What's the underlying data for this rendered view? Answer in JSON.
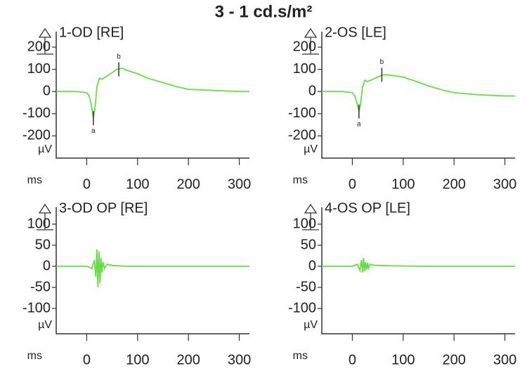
{
  "title": "3 - 1 cd.s/m²",
  "chart_data": [
    {
      "type": "line",
      "title": "1-OD [RE]",
      "xlabel": "ms",
      "ylabel": "µV",
      "x": [
        -60,
        -40,
        -20,
        0,
        5,
        10,
        13,
        16,
        20,
        25,
        30,
        40,
        50,
        60,
        70,
        80,
        100,
        120,
        150,
        180,
        200,
        250,
        300,
        320
      ],
      "series": [
        {
          "name": "1-OD",
          "color": "#66dd44",
          "values": [
            0,
            0,
            0,
            -5,
            -20,
            -70,
            -120,
            -80,
            20,
            60,
            55,
            70,
            85,
            100,
            105,
            95,
            80,
            60,
            40,
            20,
            10,
            5,
            0,
            0
          ]
        }
      ],
      "annotations": [
        {
          "text": "a",
          "x": 13,
          "y": -120
        },
        {
          "text": "b",
          "x": 63,
          "y": 100
        }
      ],
      "xlim": [
        -60,
        320
      ],
      "ylim": [
        -300,
        270
      ],
      "xticks": [
        0,
        100,
        200,
        300
      ],
      "yticks": [
        200,
        100,
        0,
        -100,
        -200
      ]
    },
    {
      "type": "line",
      "title": "2-OS [LE]",
      "xlabel": "ms",
      "ylabel": "µV",
      "x": [
        -60,
        -40,
        -20,
        0,
        5,
        10,
        13,
        16,
        20,
        25,
        30,
        40,
        50,
        60,
        70,
        80,
        100,
        120,
        150,
        180,
        200,
        250,
        300,
        320
      ],
      "series": [
        {
          "name": "2-OS",
          "color": "#66dd44",
          "values": [
            0,
            0,
            0,
            -5,
            -20,
            -60,
            -90,
            -60,
            20,
            50,
            45,
            55,
            65,
            75,
            75,
            72,
            65,
            50,
            25,
            5,
            -5,
            -15,
            -20,
            -20
          ]
        }
      ],
      "annotations": [
        {
          "text": "a",
          "x": 13,
          "y": -90
        },
        {
          "text": "b",
          "x": 58,
          "y": 75
        }
      ],
      "xlim": [
        -60,
        320
      ],
      "ylim": [
        -300,
        270
      ],
      "xticks": [
        0,
        100,
        200,
        300
      ],
      "yticks": [
        200,
        100,
        0,
        -100,
        -200
      ]
    },
    {
      "type": "line",
      "title": "3-OD OP [RE]",
      "xlabel": "ms",
      "ylabel": "µV",
      "x": [
        -60,
        -20,
        0,
        10,
        15,
        18,
        20,
        22,
        24,
        26,
        28,
        30,
        32,
        35,
        40,
        50,
        80,
        150,
        250,
        320
      ],
      "series": [
        {
          "name": "3-OD OP",
          "color": "#66dd44",
          "values": [
            0,
            0,
            0,
            -5,
            15,
            -25,
            40,
            -50,
            35,
            -40,
            20,
            -15,
            10,
            -5,
            5,
            2,
            0,
            0,
            0,
            0
          ]
        }
      ],
      "xlim": [
        -60,
        320
      ],
      "ylim": [
        -160,
        140
      ],
      "xticks": [
        0,
        100,
        200,
        300
      ],
      "yticks": [
        100,
        50,
        0,
        -50,
        -100
      ]
    },
    {
      "type": "line",
      "title": "4-OS OP [LE]",
      "xlabel": "ms",
      "ylabel": "µV",
      "x": [
        -60,
        -20,
        0,
        10,
        15,
        18,
        20,
        22,
        24,
        26,
        28,
        30,
        32,
        35,
        40,
        50,
        80,
        150,
        250,
        320
      ],
      "series": [
        {
          "name": "4-OS OP",
          "color": "#66dd44",
          "values": [
            0,
            0,
            0,
            5,
            -10,
            15,
            -15,
            20,
            -12,
            10,
            -8,
            8,
            -5,
            5,
            3,
            2,
            1,
            0,
            0,
            0
          ]
        }
      ],
      "xlim": [
        -60,
        320
      ],
      "ylim": [
        -160,
        140
      ],
      "xticks": [
        0,
        100,
        200,
        300
      ],
      "yticks": [
        100,
        50,
        0,
        -50,
        -100
      ]
    }
  ]
}
